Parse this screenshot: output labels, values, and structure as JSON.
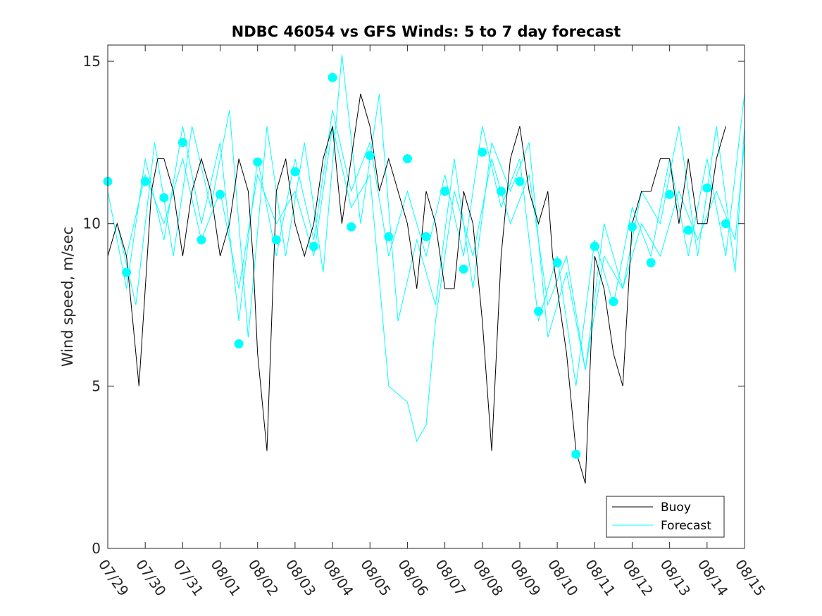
{
  "chart_data": {
    "type": "line",
    "title": "NDBC 46054 vs GFS Winds: 5 to 7 day forecast",
    "xlabel": "",
    "ylabel": "Wind speed, m/sec",
    "x_tick_labels": [
      "07/29",
      "07/30",
      "07/31",
      "08/01",
      "08/02",
      "08/03",
      "08/04",
      "08/05",
      "08/06",
      "08/07",
      "08/08",
      "08/09",
      "08/10",
      "08/11",
      "08/12",
      "08/13",
      "08/14",
      "08/15"
    ],
    "y_ticks": [
      0,
      5,
      10,
      15
    ],
    "xlim": [
      "07/29",
      "08/15"
    ],
    "ylim": [
      0,
      15.5
    ],
    "grid": false,
    "legend_position": "bottom-right",
    "colors": {
      "buoy": "#000000",
      "forecast": "#00FFFF",
      "axis": "#262626"
    },
    "series": [
      {
        "name": "Buoy",
        "style": "line",
        "x": [
          "07/29 00:00",
          "07/29 06:00",
          "07/29 12:00",
          "07/29 16:00",
          "07/29 18:00",
          "07/29 20:00",
          "07/30 00:00",
          "07/30 04:00",
          "07/30 08:00",
          "07/30 12:00",
          "07/30 18:00",
          "07/31 00:00",
          "07/31 06:00",
          "07/31 12:00",
          "07/31 18:00",
          "08/01 00:00",
          "08/01 06:00",
          "08/01 12:00",
          "08/01 18:00",
          "08/01 21:00",
          "08/02 00:00",
          "08/02 06:00",
          "08/02 12:00",
          "08/02 18:00",
          "08/03 00:00",
          "08/03 06:00",
          "08/03 12:00",
          "08/03 18:00",
          "08/04 00:00",
          "08/04 06:00",
          "08/04 12:00",
          "08/04 18:00",
          "08/05 00:00",
          "08/05 06:00",
          "08/05 12:00",
          "08/05 18:00",
          "08/06 00:00",
          "08/06 06:00",
          "08/06 12:00",
          "08/06 18:00",
          "08/07 00:00",
          "08/07 06:00",
          "08/07 12:00",
          "08/07 18:00",
          "08/08 00:00",
          "08/08 06:00",
          "08/08 12:00",
          "08/08 18:00",
          "08/09 00:00",
          "08/09 06:00",
          "08/09 12:00",
          "08/09 18:00",
          "08/09 21:00",
          "08/10 00:00",
          "08/10 06:00",
          "08/10 12:00",
          "08/10 18:00",
          "08/11 00:00",
          "08/11 06:00",
          "08/11 12:00",
          "08/11 18:00",
          "08/12 00:00",
          "08/12 06:00",
          "08/12 12:00",
          "08/12 18:00",
          "08/13 00:00",
          "08/13 06:00",
          "08/13 12:00",
          "08/13 18:00",
          "08/14 00:00",
          "08/14 06:00",
          "08/14 12:00"
        ],
        "y": [
          9,
          10,
          9,
          7,
          6,
          5,
          8,
          11,
          12,
          12,
          11,
          9,
          11,
          12,
          11,
          9,
          10,
          12,
          11,
          9,
          6,
          3,
          11,
          12,
          10,
          9,
          10,
          12,
          13,
          10,
          12,
          14,
          13,
          11,
          12,
          11,
          10,
          8,
          11,
          10,
          8,
          8,
          11,
          10,
          7,
          3,
          9,
          12,
          13,
          11,
          10,
          11,
          9,
          8,
          6,
          3,
          2,
          9,
          8,
          6,
          5,
          10,
          11,
          11,
          12,
          12,
          10,
          12,
          10,
          10,
          12,
          13
        ]
      },
      {
        "name": "Forecast",
        "style": "markers",
        "x": [
          "07/29 00:00",
          "07/29 12:00",
          "07/30 00:00",
          "07/30 12:00",
          "07/31 00:00",
          "07/31 12:00",
          "08/01 00:00",
          "08/01 12:00",
          "08/02 00:00",
          "08/02 12:00",
          "08/03 00:00",
          "08/03 12:00",
          "08/04 00:00",
          "08/04 12:00",
          "08/05 00:00",
          "08/05 12:00",
          "08/06 00:00",
          "08/06 12:00",
          "08/07 00:00",
          "08/07 12:00",
          "08/08 00:00",
          "08/08 12:00",
          "08/09 00:00",
          "08/09 12:00",
          "08/10 00:00",
          "08/10 12:00",
          "08/11 00:00",
          "08/11 12:00",
          "08/12 00:00",
          "08/12 12:00",
          "08/13 00:00",
          "08/13 12:00",
          "08/14 00:00",
          "08/14 12:00"
        ],
        "y": [
          11.3,
          8.5,
          11.3,
          10.8,
          12.5,
          9.5,
          10.9,
          6.3,
          11.9,
          9.5,
          11.6,
          9.3,
          14.5,
          9.9,
          12.1,
          9.6,
          12.0,
          9.6,
          11.0,
          8.6,
          12.2,
          11.0,
          11.3,
          7.3,
          8.8,
          2.9,
          9.3,
          7.6,
          9.9,
          8.8,
          10.9,
          9.8,
          11.1,
          10.0
        ]
      },
      {
        "name": "",
        "style": "line",
        "x": [
          "07/29 00:00",
          "07/29 12:00",
          "07/30 00:00",
          "07/30 12:00",
          "07/31 00:00",
          "07/31 12:00",
          "08/01 00:00",
          "08/01 12:00",
          "08/02 00:00",
          "08/02 12:00",
          "08/03 00:00",
          "08/03 12:00",
          "08/04 00:00",
          "08/04 12:00",
          "08/05 00:00",
          "08/05 12:00",
          "08/06 00:00",
          "08/06 12:00",
          "08/07 00:00",
          "08/07 12:00",
          "08/08 00:00",
          "08/08 12:00",
          "08/09 00:00",
          "08/09 12:00",
          "08/10 00:00",
          "08/10 12:00",
          "08/11 00:00",
          "08/11 12:00",
          "08/12 00:00",
          "08/12 12:00",
          "08/13 00:00",
          "08/13 12:00",
          "08/14 00:00",
          "08/14 12:00",
          "08/15 00:00"
        ],
        "y": [
          11.0,
          8.0,
          12.0,
          9.5,
          13.0,
          10.0,
          12.5,
          7.0,
          12.0,
          9.0,
          12.0,
          9.5,
          13.5,
          11.0,
          12.5,
          9.0,
          11.0,
          9.0,
          11.5,
          9.0,
          13.0,
          10.5,
          12.0,
          7.0,
          9.0,
          5.0,
          9.5,
          7.5,
          10.5,
          9.0,
          12.0,
          9.0,
          12.0,
          9.0,
          14.0
        ]
      },
      {
        "name": "",
        "style": "line",
        "x": [
          "07/29 06:00",
          "07/29 18:00",
          "07/30 06:00",
          "07/30 18:00",
          "07/31 06:00",
          "07/31 18:00",
          "08/01 06:00",
          "08/01 18:00",
          "08/02 06:00",
          "08/02 18:00",
          "08/03 06:00",
          "08/03 18:00",
          "08/04 06:00",
          "08/04 18:00",
          "08/05 06:00",
          "08/05 18:00",
          "08/06 06:00",
          "08/06 18:00",
          "08/07 06:00",
          "08/07 18:00",
          "08/08 06:00",
          "08/08 18:00",
          "08/09 06:00",
          "08/09 18:00",
          "08/10 06:00",
          "08/10 18:00",
          "08/11 06:00",
          "08/11 18:00",
          "08/12 06:00",
          "08/12 18:00",
          "08/13 06:00",
          "08/13 18:00",
          "08/14 06:00",
          "08/14 18:00",
          "08/15 00:00"
        ],
        "y": [
          10.0,
          7.5,
          12.5,
          9.0,
          13.0,
          10.5,
          13.5,
          6.5,
          13.0,
          9.0,
          12.5,
          8.5,
          15.2,
          10.0,
          14.0,
          7.0,
          9.5,
          7.5,
          12.0,
          8.0,
          12.5,
          11.0,
          12.5,
          6.5,
          8.5,
          5.5,
          10.0,
          8.0,
          11.0,
          10.0,
          13.0,
          9.0,
          13.0,
          8.5,
          13.0
        ]
      },
      {
        "name": "",
        "style": "line",
        "x": [
          "07/29 12:00",
          "07/30 00:00",
          "07/30 12:00",
          "07/31 00:00",
          "07/31 12:00",
          "08/01 00:00",
          "08/01 12:00",
          "08/02 00:00",
          "08/02 12:00",
          "08/03 00:00",
          "08/03 12:00",
          "08/04 00:00",
          "08/04 12:00",
          "08/05 00:00",
          "08/05 12:00",
          "08/06 00:00",
          "08/06 06:00",
          "08/06 12:00",
          "08/06 18:00",
          "08/07 06:00",
          "08/07 18:00",
          "08/08 06:00",
          "08/08 18:00",
          "08/09 06:00",
          "08/09 18:00",
          "08/10 06:00",
          "08/10 18:00",
          "08/11 06:00",
          "08/11 18:00",
          "08/12 06:00",
          "08/12 18:00",
          "08/13 06:00",
          "08/13 18:00",
          "08/14 06:00",
          "08/14 18:00",
          "08/15 00:00"
        ],
        "y": [
          9.0,
          11.5,
          10.0,
          12.0,
          9.5,
          11.0,
          8.0,
          11.5,
          10.0,
          11.0,
          9.0,
          13.0,
          10.5,
          11.5,
          5.0,
          4.5,
          3.3,
          3.8,
          7.0,
          11.0,
          9.0,
          12.0,
          10.0,
          11.5,
          7.5,
          9.0,
          5.5,
          9.0,
          8.0,
          10.0,
          9.0,
          11.0,
          9.5,
          11.0,
          9.5,
          12.5
        ]
      }
    ]
  }
}
